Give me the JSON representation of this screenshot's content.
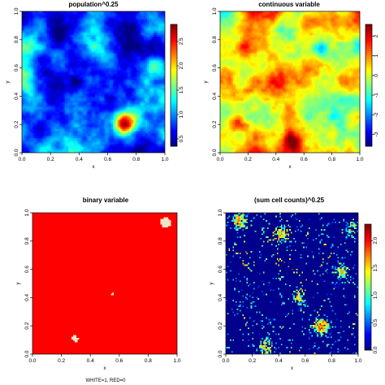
{
  "figure": {
    "footer_text": "WHITE=1, RED=0"
  },
  "chart_data": [
    {
      "type": "heatmap",
      "title": "population^0.25",
      "xlabel": "x",
      "ylabel": "y",
      "xlim": [
        0,
        1
      ],
      "ylim": [
        0,
        1
      ],
      "xticks": [
        "0.0",
        "0.2",
        "0.4",
        "0.6",
        "0.8",
        "1.0"
      ],
      "yticks": [
        "0.0",
        "0.2",
        "0.4",
        "0.6",
        "0.8",
        "1.0"
      ],
      "colorbar": {
        "min": 0.35,
        "max": 2.85,
        "ticks": [
          "0.5",
          "1.0",
          "1.5",
          "2.0",
          "2.5"
        ],
        "tick_values": [
          0.5,
          1.0,
          1.5,
          2.0,
          2.5
        ],
        "palette": "jet"
      },
      "field": {
        "grid": 96,
        "seed": 11,
        "mean": 0.95,
        "spread": 0.55,
        "hotspots": [
          {
            "x": 0.72,
            "y": 0.2,
            "strength": 1.6
          },
          {
            "x": 0.93,
            "y": 0.62,
            "strength": 0.9
          },
          {
            "x": 0.25,
            "y": 0.72,
            "strength": 0.6
          }
        ]
      }
    },
    {
      "type": "heatmap",
      "title": "continuous variable",
      "xlabel": "x",
      "ylabel": "y",
      "xlim": [
        0,
        1
      ],
      "ylim": [
        0,
        1
      ],
      "xticks": [
        "0.0",
        "0.2",
        "0.4",
        "0.6",
        "0.8",
        "1.0"
      ],
      "yticks": [
        "0.0",
        "0.2",
        "0.4",
        "0.6",
        "0.8",
        "1.0"
      ],
      "colorbar": {
        "min": -3.6,
        "max": 2.6,
        "ticks": [
          "-3",
          "-2",
          "-1",
          "0",
          "1",
          "2"
        ],
        "tick_values": [
          -3,
          -2,
          -1,
          0,
          1,
          2
        ],
        "palette": "jet"
      },
      "field": {
        "grid": 96,
        "seed": 29,
        "mean": 0.2,
        "spread": 1.3,
        "hotspots": [
          {
            "x": 0.12,
            "y": 0.2,
            "strength": 2.2
          },
          {
            "x": 0.52,
            "y": 0.08,
            "strength": 1.8
          },
          {
            "x": 0.18,
            "y": 0.75,
            "strength": 1.0
          },
          {
            "x": 0.72,
            "y": 0.72,
            "strength": -1.4
          }
        ]
      }
    },
    {
      "type": "heatmap",
      "title": "binary variable",
      "xlabel": "x",
      "ylabel": "y",
      "xlim": [
        0,
        1
      ],
      "ylim": [
        0,
        1
      ],
      "xticks": [
        "0.0",
        "0.2",
        "0.4",
        "0.6",
        "0.8",
        "1.0"
      ],
      "yticks": [
        "0.0",
        "0.2",
        "0.4",
        "0.6",
        "0.8",
        "1.0"
      ],
      "legend": {
        "WHITE": 1,
        "RED": 0
      },
      "colors": {
        "one": "#f3e4c4",
        "zero": "#ff0000"
      },
      "field": {
        "grid": 96,
        "seed": 53,
        "white_fraction": 0.06,
        "blobs": [
          {
            "x": 0.92,
            "y": 0.93,
            "strength": 1.0
          },
          {
            "x": 0.24,
            "y": 0.84,
            "strength": 0.9
          },
          {
            "x": 0.55,
            "y": 0.42,
            "strength": 0.9
          },
          {
            "x": 0.12,
            "y": 0.6,
            "strength": 0.6
          },
          {
            "x": 0.3,
            "y": 0.1,
            "strength": 0.8
          },
          {
            "x": 0.1,
            "y": 0.07,
            "strength": 0.5
          },
          {
            "x": 0.77,
            "y": 0.28,
            "strength": 0.6
          },
          {
            "x": 0.9,
            "y": 0.03,
            "strength": 0.5
          }
        ]
      }
    },
    {
      "type": "heatmap",
      "title": "(sum cell counts)^0.25",
      "xlabel": "x",
      "ylabel": "y",
      "xlim": [
        0,
        1
      ],
      "ylim": [
        0,
        1
      ],
      "xticks": [
        "0.0",
        "0.2",
        "0.4",
        "0.6",
        "0.8",
        "1.0"
      ],
      "yticks": [
        "0.0",
        "0.2",
        "0.4",
        "0.6",
        "0.8",
        "1.0"
      ],
      "colorbar": {
        "min": 0,
        "max": 2.3,
        "ticks": [
          "0.0",
          "0.5",
          "1.0",
          "1.5",
          "2.0"
        ],
        "tick_values": [
          0.0,
          0.5,
          1.0,
          1.5,
          2.0
        ],
        "palette": "jet"
      },
      "field": {
        "grid": 96,
        "seed": 71,
        "occupancy": 0.06,
        "hotspots": [
          {
            "x": 0.72,
            "y": 0.2,
            "strength": 2.2
          },
          {
            "x": 0.1,
            "y": 0.94,
            "strength": 1.8
          },
          {
            "x": 0.42,
            "y": 0.85,
            "strength": 1.3
          },
          {
            "x": 0.88,
            "y": 0.58,
            "strength": 1.3
          },
          {
            "x": 0.3,
            "y": 0.05,
            "strength": 1.1
          },
          {
            "x": 0.55,
            "y": 0.4,
            "strength": 0.9
          },
          {
            "x": 0.95,
            "y": 0.88,
            "strength": 0.9
          }
        ]
      }
    }
  ]
}
